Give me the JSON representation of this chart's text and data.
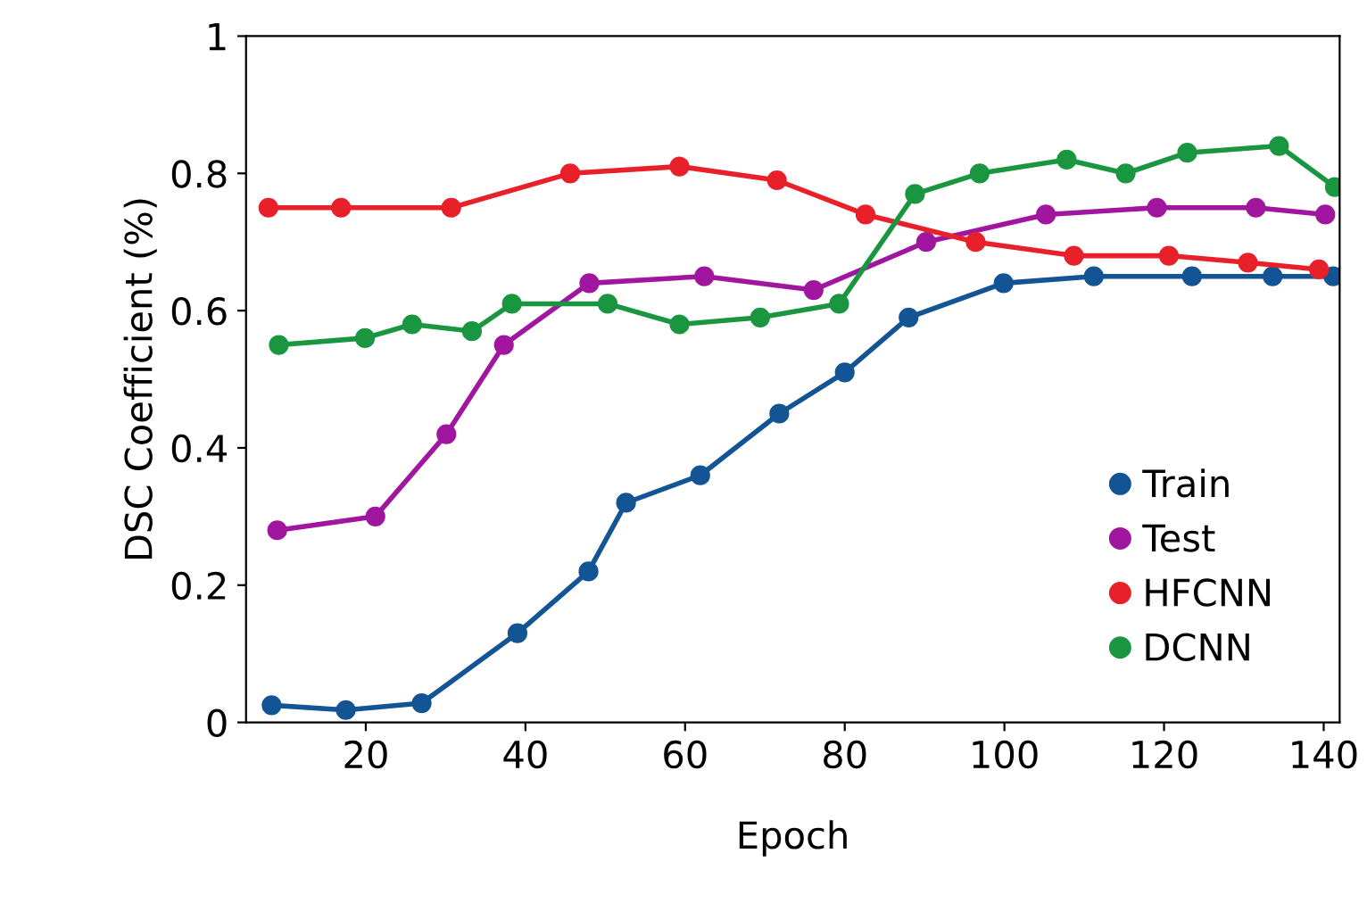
{
  "chart_data": {
    "type": "line",
    "xlabel": "Epoch",
    "ylabel": "DSC Coefficient (%)",
    "xlim": [
      5,
      142
    ],
    "xticks": [
      20,
      40,
      60,
      80,
      100,
      120,
      140
    ],
    "ylim": [
      0,
      1
    ],
    "yticks": [
      0,
      0.2,
      0.4,
      0.6,
      0.8,
      1
    ],
    "grid": false,
    "legend": "bottom right",
    "marker": "circle",
    "line_style": "solid",
    "series": [
      {
        "name": "Train",
        "color": "#125494",
        "x": [
          8.2,
          17.5,
          27,
          39,
          47.9,
          52.6,
          61.9,
          71.8,
          80,
          88,
          99.9,
          111.2,
          123.5,
          133.6,
          141.2
        ],
        "values": [
          0.025,
          0.018,
          0.028,
          0.13,
          0.22,
          0.32,
          0.36,
          0.45,
          0.51,
          0.59,
          0.64,
          0.65,
          0.65,
          0.65,
          0.65
        ]
      },
      {
        "name": "Test",
        "color": "#a0169e",
        "x": [
          8.9,
          21.2,
          30.1,
          37.3,
          48,
          62.4,
          76.1,
          90.2,
          105.2,
          119.1,
          131.5,
          140.2
        ],
        "values": [
          0.28,
          0.3,
          0.42,
          0.55,
          0.64,
          0.65,
          0.63,
          0.7,
          0.74,
          0.75,
          0.75,
          0.74
        ]
      },
      {
        "name": "HFCNN",
        "color": "#e8202a",
        "x": [
          7.8,
          16.9,
          30.7,
          45.6,
          59.3,
          71.5,
          82.6,
          96.4,
          108.7,
          120.6,
          130.5,
          139.4
        ],
        "values": [
          0.75,
          0.75,
          0.75,
          0.8,
          0.81,
          0.79,
          0.74,
          0.7,
          0.68,
          0.68,
          0.67,
          0.66
        ]
      },
      {
        "name": "DCNN",
        "color": "#1a9641",
        "x": [
          9.1,
          19.9,
          25.8,
          33.3,
          38.3,
          50.3,
          59.3,
          69.4,
          79.3,
          88.8,
          96.9,
          107.8,
          115.2,
          122.9,
          134.4,
          141.4
        ],
        "values": [
          0.55,
          0.56,
          0.58,
          0.57,
          0.61,
          0.61,
          0.58,
          0.59,
          0.61,
          0.77,
          0.8,
          0.82,
          0.8,
          0.83,
          0.84,
          0.78
        ]
      }
    ]
  }
}
